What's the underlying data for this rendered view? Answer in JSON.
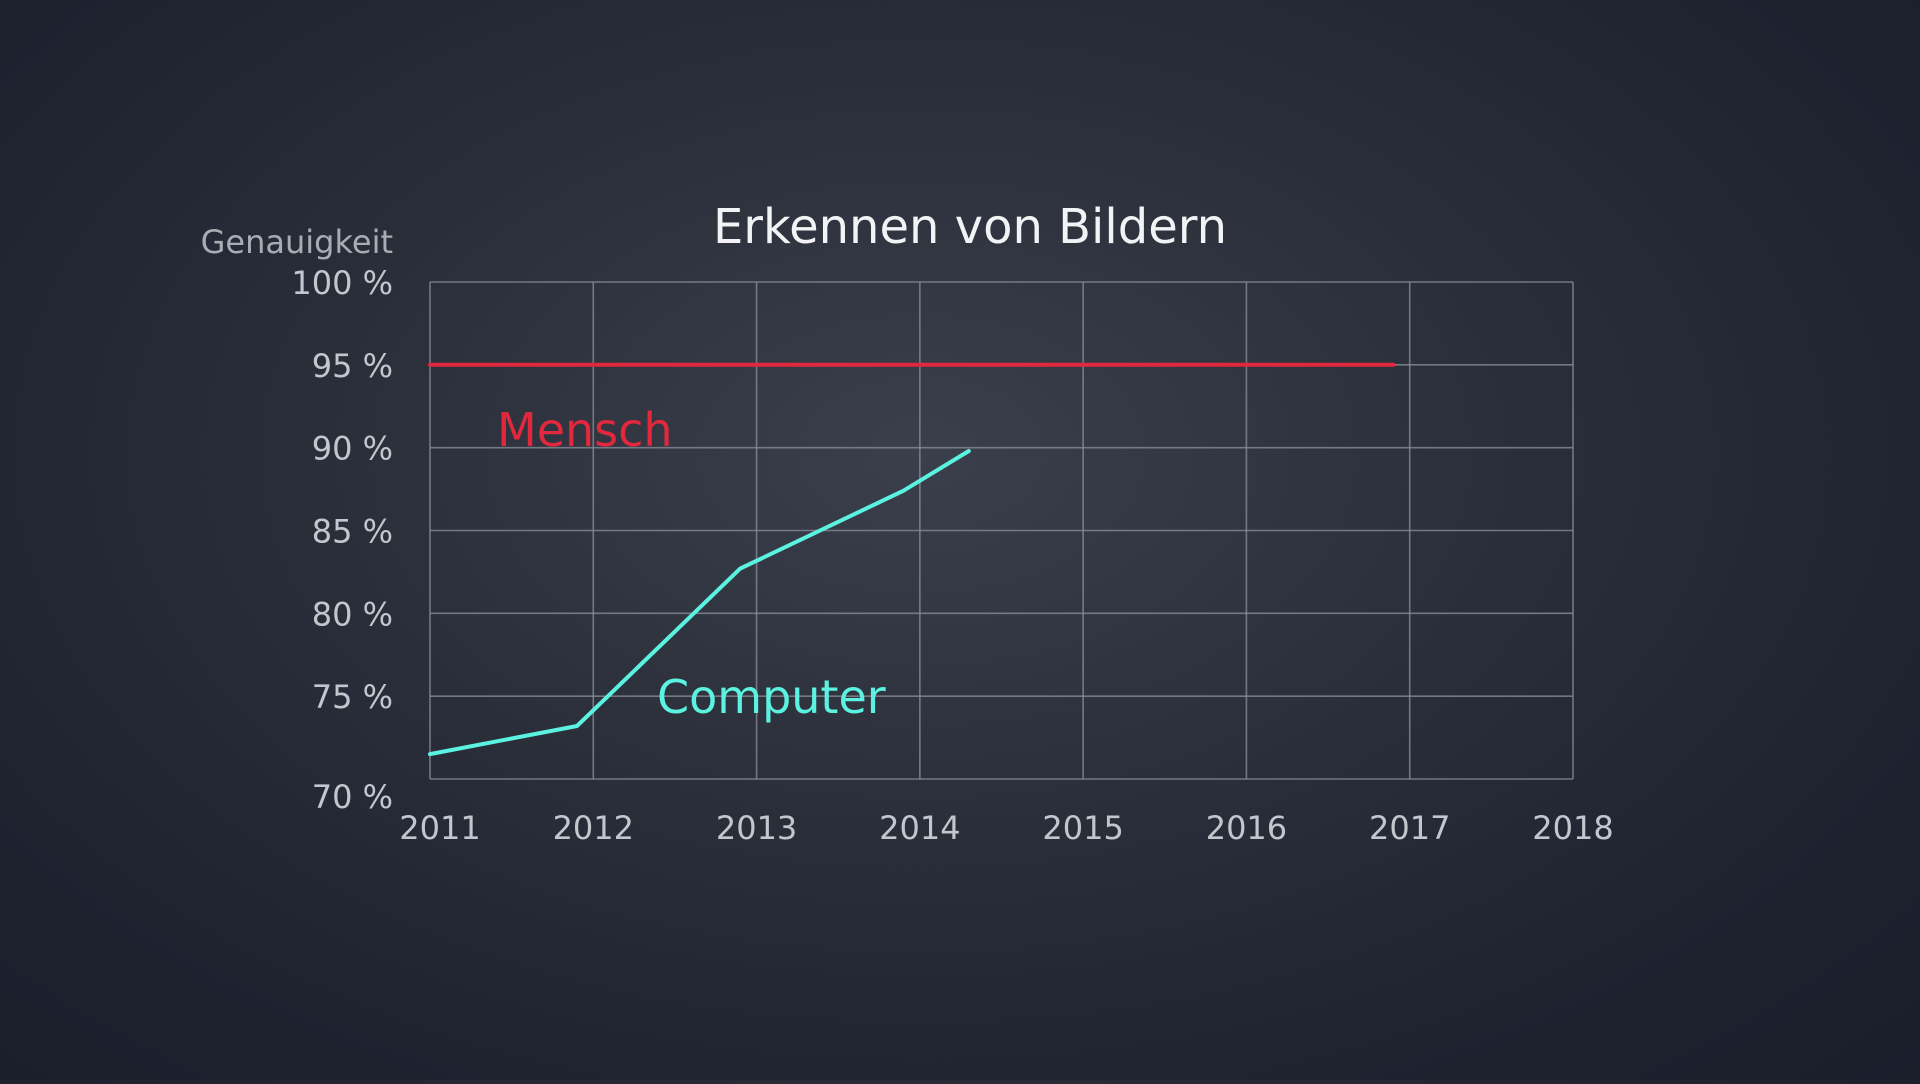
{
  "chart_data": {
    "type": "line",
    "title": "Erkennen von Bildern",
    "xlabel": "",
    "ylabel": "Genauigkeit",
    "x_categories": [
      "2011",
      "2012",
      "2013",
      "2014",
      "2015",
      "2016",
      "2017",
      "2018"
    ],
    "xlim": [
      2011,
      2018
    ],
    "ylim": [
      70,
      100
    ],
    "y_ticks": [
      100,
      95,
      90,
      85,
      80,
      75,
      70
    ],
    "y_tick_labels": [
      "100 %",
      "95 %",
      "90 %",
      "85 %",
      "80 %",
      "75 %",
      "70 %"
    ],
    "grid": true,
    "series": [
      {
        "name": "Mensch",
        "color": "#e3273d",
        "points": [
          {
            "x": 2011,
            "y": 95
          },
          {
            "x": 2016.9,
            "y": 95
          }
        ]
      },
      {
        "name": "Computer",
        "color": "#5cf2e1",
        "points": [
          {
            "x": 2011,
            "y": 71.5
          },
          {
            "x": 2011.9,
            "y": 73.2
          },
          {
            "x": 2012.9,
            "y": 82.7
          },
          {
            "x": 2013.9,
            "y": 87.4
          },
          {
            "x": 2014.3,
            "y": 89.8
          }
        ]
      }
    ]
  }
}
